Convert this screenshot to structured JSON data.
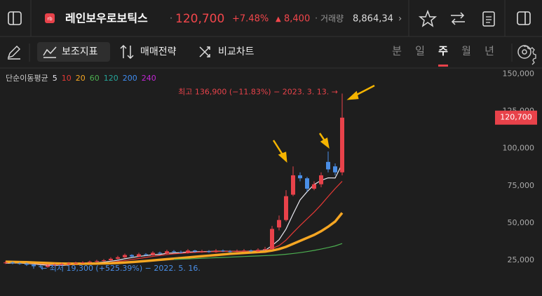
{
  "header": {
    "logo": "rb",
    "name": "레인보우로보틱스",
    "price": "120,700",
    "change_pct": "+7.48%",
    "change": "8,400",
    "volume_label": "거래량",
    "volume": "8,864,34"
  },
  "toolbar": {
    "tools": [
      "보조지표",
      "매매전략",
      "비교차트"
    ],
    "periods": [
      "분",
      "일",
      "주",
      "월",
      "년"
    ],
    "selected": "주"
  },
  "chart_data": {
    "type": "candlestick",
    "ma_label": "단순이동평균",
    "ma": [
      {
        "period": 5,
        "color": "#e8e8f0",
        "values": [
          23000,
          23200,
          23100,
          22800,
          22500,
          22000,
          21700,
          21500,
          21500,
          21900,
          22400,
          22600,
          23000,
          23400,
          23800,
          24400,
          25000,
          26000,
          26800,
          27600,
          28100,
          28700,
          28900,
          29700,
          29900,
          30200,
          30500,
          30600,
          30800,
          30900,
          31000,
          31000,
          31100,
          31000,
          31100,
          31200,
          31300,
          31600,
          34800,
          38800,
          46000,
          56000,
          65500,
          71000,
          75800,
          78600,
          80300,
          80200,
          89700
        ]
      },
      {
        "period": 10,
        "color": "#e53935",
        "values": [
          23500,
          23400,
          23300,
          23100,
          22900,
          22600,
          22300,
          22100,
          22000,
          22000,
          22100,
          22200,
          22400,
          22700,
          23100,
          23600,
          24200,
          24800,
          25500,
          26200,
          26900,
          27600,
          28200,
          28800,
          29300,
          29600,
          30000,
          30300,
          30500,
          30700,
          30800,
          30900,
          31000,
          31000,
          31100,
          31100,
          31200,
          31300,
          32900,
          34800,
          38500,
          43500,
          48300,
          52800,
          57300,
          62300,
          67800,
          73100,
          78000
        ]
      },
      {
        "period": 20,
        "color": "#f5a623",
        "values": [
          24000,
          23900,
          23800,
          23700,
          23500,
          23300,
          23100,
          22900,
          22800,
          22700,
          22700,
          22700,
          22700,
          22800,
          22900,
          23000,
          23200,
          23500,
          23800,
          24100,
          24500,
          24900,
          25300,
          25700,
          26100,
          26500,
          26900,
          27300,
          27700,
          28100,
          28500,
          28900,
          29300,
          29600,
          29900,
          30200,
          30500,
          30800,
          31500,
          32500,
          34000,
          36000,
          38000,
          40000,
          42000,
          44500,
          47500,
          51000,
          56800
        ]
      },
      {
        "period": 60,
        "color": "#4caf50",
        "values": [
          null,
          null,
          null,
          null,
          null,
          null,
          null,
          null,
          null,
          null,
          null,
          null,
          null,
          null,
          null,
          null,
          null,
          null,
          null,
          null,
          null,
          null,
          null,
          null,
          25500,
          25700,
          25900,
          26100,
          26300,
          26500,
          26700,
          26900,
          27100,
          27300,
          27500,
          27700,
          27900,
          28100,
          28300,
          28600,
          29000,
          29500,
          30100,
          30800,
          31600,
          32500,
          33500,
          34600,
          36200
        ]
      },
      {
        "period": 120,
        "color": "#26a69a"
      },
      {
        "period": 200,
        "color": "#3f8cf0"
      },
      {
        "period": 240,
        "color": "#c026d3"
      }
    ],
    "up_color": "#e8424a",
    "down_color": "#4a8fe7",
    "open": [
      23000,
      23500,
      23000,
      22800,
      22000,
      21000,
      20500,
      21500,
      22000,
      22500,
      23000,
      23200,
      23500,
      24000,
      24500,
      25000,
      26000,
      27000,
      28500,
      27500,
      29000,
      28500,
      30000,
      29500,
      31000,
      30500,
      30000,
      31500,
      30800,
      31000,
      30500,
      31500,
      31000,
      30800,
      31200,
      31500,
      31000,
      32000,
      32500,
      47000,
      52000,
      69000,
      82000,
      80000,
      73000,
      76000,
      91000,
      88000,
      84000
    ],
    "high": [
      24500,
      24200,
      23800,
      23500,
      22500,
      21800,
      22200,
      22800,
      23300,
      23800,
      24000,
      24300,
      24800,
      25300,
      25800,
      27000,
      28000,
      29500,
      29000,
      30000,
      29800,
      31000,
      30800,
      32000,
      31800,
      31500,
      32500,
      32000,
      32000,
      31800,
      32500,
      32200,
      31800,
      32200,
      32500,
      32200,
      33000,
      34000,
      48000,
      55000,
      72000,
      88000,
      84000,
      81000,
      78000,
      84000,
      98000,
      90000,
      136900
    ],
    "low": [
      22500,
      22300,
      22000,
      21200,
      19300,
      19800,
      20000,
      21000,
      21500,
      22000,
      22500,
      22800,
      23000,
      23500,
      24000,
      24500,
      25500,
      26500,
      27000,
      27000,
      28000,
      28000,
      29000,
      29000,
      30000,
      29500,
      29500,
      30000,
      30000,
      30000,
      30000,
      30500,
      30000,
      30000,
      30500,
      30500,
      30500,
      31500,
      32000,
      45000,
      51000,
      68000,
      78000,
      71000,
      72000,
      74000,
      84000,
      82000,
      82000
    ],
    "close": [
      23500,
      23000,
      22800,
      22000,
      21000,
      20500,
      21500,
      22000,
      22500,
      23000,
      23200,
      23500,
      24000,
      24500,
      25000,
      26000,
      27000,
      28500,
      27500,
      29000,
      28500,
      30000,
      29500,
      31000,
      30500,
      30000,
      31500,
      30800,
      31000,
      30500,
      31500,
      31000,
      30800,
      31200,
      31500,
      31000,
      32000,
      32500,
      46000,
      52000,
      68000,
      82000,
      80000,
      73000,
      76000,
      82000,
      86000,
      84000,
      120700
    ],
    "ylim": [
      1000,
      154000
    ],
    "yticks": [
      {
        "value": 25000,
        "label": "25,000"
      },
      {
        "value": 50000,
        "label": "50,000"
      },
      {
        "value": 75000,
        "label": "75,000"
      },
      {
        "value": 100000,
        "label": "100,000"
      },
      {
        "value": 125000,
        "label": "125,000"
      },
      {
        "value": 150000,
        "label": "150,000"
      }
    ],
    "price_tag": {
      "value": 120700,
      "label": "120,700"
    },
    "high_note": "최고 136,900 (−11.83%) − 2023. 3. 13. →",
    "low_note": "← 최저 19,300 (+525.39%) − 2022. 5. 16."
  }
}
